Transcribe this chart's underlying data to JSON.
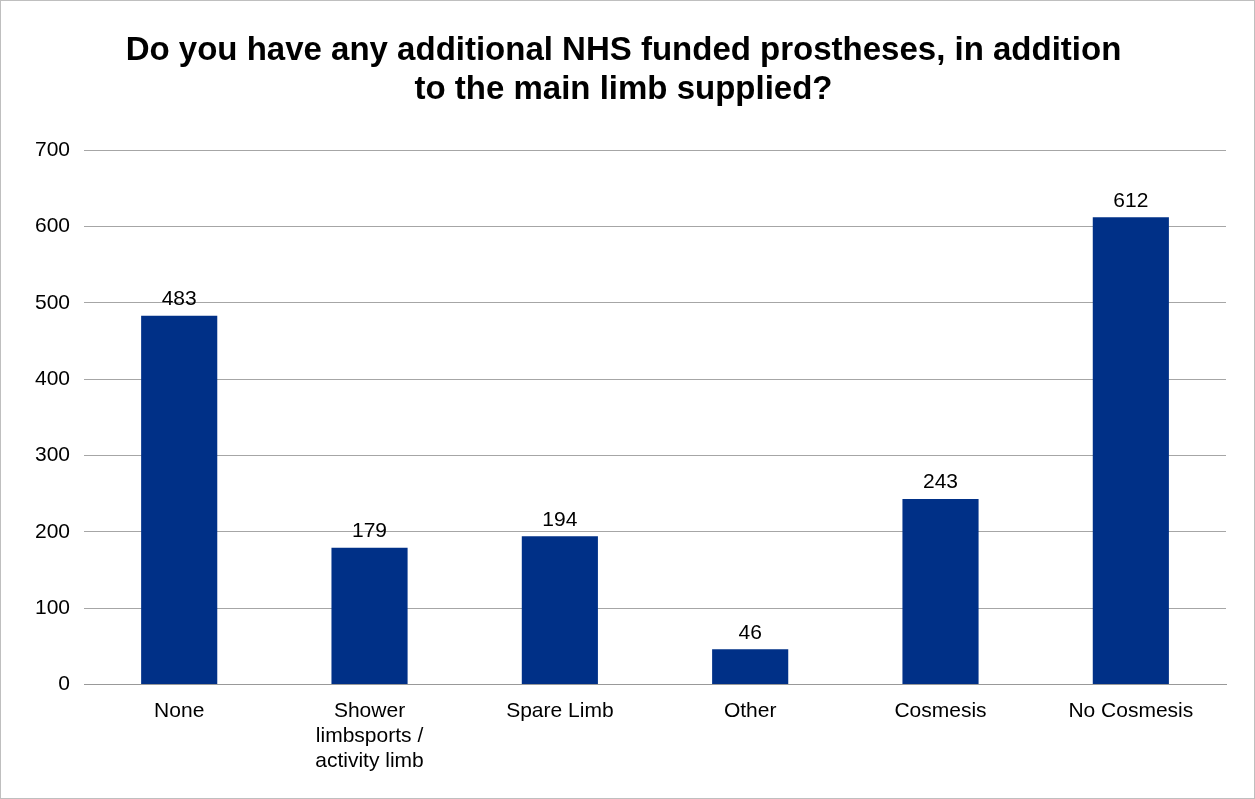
{
  "chart_data": {
    "type": "bar",
    "title": "Do you have any additional NHS funded prostheses, in addition to the main limb supplied?",
    "categories": [
      "None",
      "Shower limbsports / activity limb",
      "Spare Limb",
      "Other",
      "Cosmesis",
      "No Cosmesis"
    ],
    "values": [
      483,
      179,
      194,
      46,
      243,
      612
    ],
    "color": "#003087",
    "ylim": [
      0,
      700
    ],
    "yticks": [
      0,
      100,
      200,
      300,
      400,
      500,
      600,
      700
    ],
    "grid": "y",
    "data_labels": true
  }
}
